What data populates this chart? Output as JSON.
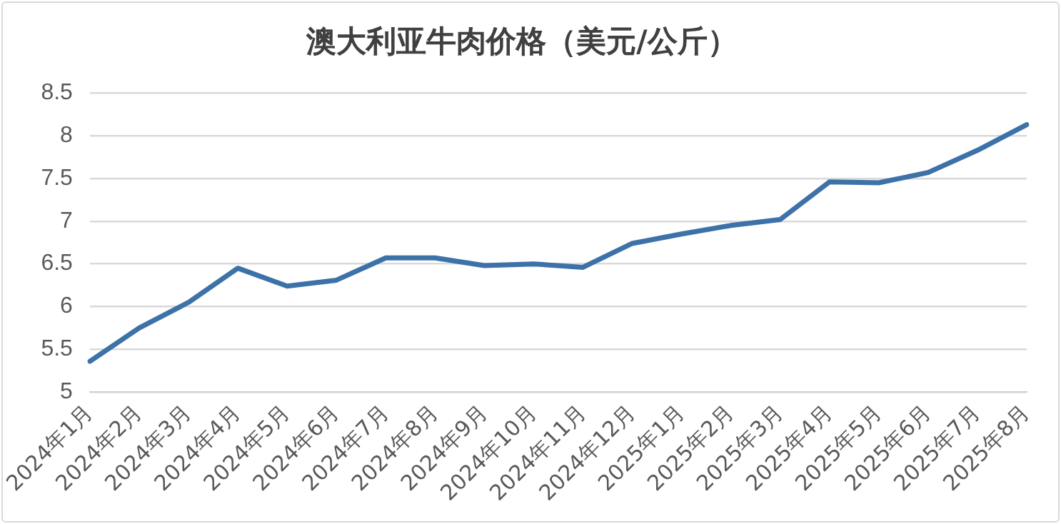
{
  "chart_data": {
    "type": "line",
    "title": "澳大利亚牛肉价格（美元/公斤）",
    "categories": [
      "2024年1月",
      "2024年2月",
      "2024年3月",
      "2024年4月",
      "2024年5月",
      "2024年6月",
      "2024年7月",
      "2024年8月",
      "2024年9月",
      "2024年10月",
      "2024年11月",
      "2024年12月",
      "2025年1月",
      "2025年2月",
      "2025年3月",
      "2025年4月",
      "2025年5月",
      "2025年6月",
      "2025年7月",
      "2025年8月"
    ],
    "series": [
      {
        "color": "#3d72a9",
        "values": [
          5.36,
          5.75,
          6.05,
          6.45,
          6.24,
          6.31,
          6.57,
          6.57,
          6.48,
          6.5,
          6.46,
          6.74,
          6.85,
          6.95,
          7.02,
          7.46,
          7.45,
          7.57,
          7.83,
          8.13
        ]
      }
    ],
    "ylim": [
      5,
      8.5
    ],
    "yticks": [
      5,
      5.5,
      6,
      6.5,
      7,
      7.5,
      8,
      8.5
    ],
    "grid": "y",
    "legend": false,
    "marker": "none",
    "line_style": "solid"
  }
}
